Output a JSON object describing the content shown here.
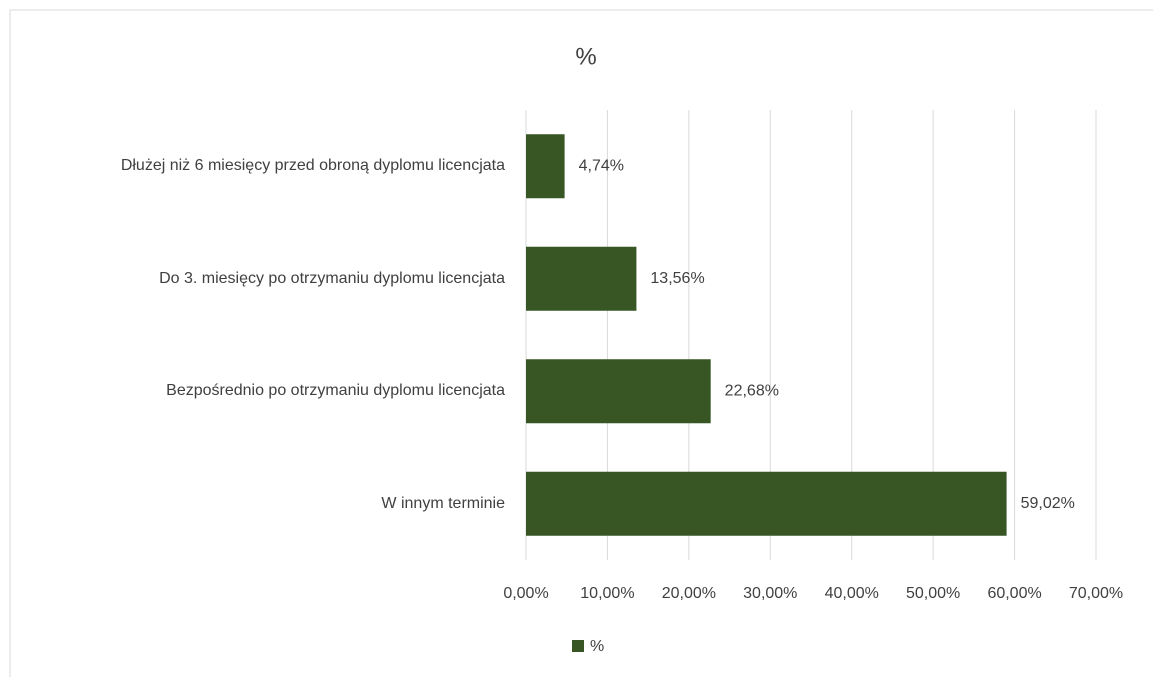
{
  "chart_data": {
    "type": "bar",
    "orientation": "horizontal",
    "title": "%",
    "categories": [
      "Dłużej niż 6 miesięcy przed obroną dyplomu licencjata",
      "Do 3. miesięcy po otrzymaniu dyplomu licencjata",
      "Bezpośrednio po otrzymaniu dyplomu licencjata",
      "W innym terminie"
    ],
    "series": [
      {
        "name": "%",
        "color": "#375623",
        "values": [
          4.74,
          13.56,
          22.68,
          59.02
        ],
        "value_labels": [
          "4,74%",
          "13,56%",
          "22,68%",
          "59,02%"
        ]
      }
    ],
    "xlim": [
      0,
      70
    ],
    "xticks": [
      {
        "value": 0,
        "label": "0,00%"
      },
      {
        "value": 10,
        "label": "10,00%"
      },
      {
        "value": 20,
        "label": "20,00%"
      },
      {
        "value": 30,
        "label": "30,00%"
      },
      {
        "value": 40,
        "label": "40,00%"
      },
      {
        "value": 50,
        "label": "50,00%"
      },
      {
        "value": 60,
        "label": "60,00%"
      },
      {
        "value": 70,
        "label": "70,00%"
      }
    ],
    "grid": true,
    "legend": "bottom"
  }
}
